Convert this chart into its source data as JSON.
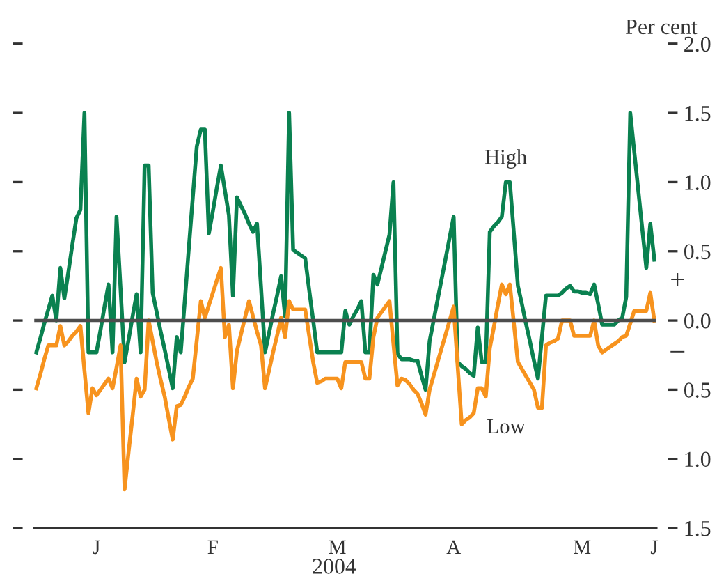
{
  "chart_data": {
    "type": "line",
    "xlabel": "2004",
    "ylabel": "Per cent",
    "ylim": [
      -1.5,
      2.0
    ],
    "yticks": [
      {
        "value": 2,
        "label": "2.0"
      },
      {
        "value": 1.5,
        "label": "1.5"
      },
      {
        "value": 1,
        "label": "1.0"
      },
      {
        "value": 0.5,
        "label": "0.5"
      },
      {
        "value": 0,
        "label": "0.0"
      },
      {
        "value": -0.5,
        "label": "0.5"
      },
      {
        "value": -1,
        "label": "1.0"
      },
      {
        "value": -1.5,
        "label": "1.5"
      }
    ],
    "ref_lines": [
      {
        "axis": "y",
        "value": 0,
        "color": "#4d4d4d"
      }
    ],
    "annotations": [
      "+",
      "–"
    ],
    "categories": [
      null,
      null,
      null,
      null,
      null,
      null,
      null,
      null,
      null,
      null,
      null,
      null,
      null,
      null,
      null,
      "J",
      null,
      null,
      null,
      null,
      null,
      null,
      null,
      null,
      null,
      null,
      null,
      null,
      null,
      null,
      null,
      null,
      null,
      null,
      null,
      null,
      null,
      null,
      null,
      null,
      null,
      null,
      null,
      null,
      "F",
      null,
      null,
      null,
      null,
      null,
      null,
      null,
      null,
      null,
      null,
      null,
      null,
      null,
      null,
      null,
      null,
      null,
      null,
      null,
      null,
      null,
      null,
      null,
      null,
      null,
      null,
      null,
      null,
      null,
      null,
      "M",
      null,
      null,
      null,
      null,
      null,
      null,
      null,
      null,
      null,
      null,
      null,
      null,
      null,
      null,
      null,
      null,
      null,
      null,
      null,
      null,
      null,
      null,
      null,
      null,
      null,
      null,
      null,
      null,
      "A",
      null,
      null,
      null,
      null,
      null,
      null,
      null,
      null,
      null,
      null,
      null,
      null,
      null,
      null,
      null,
      null,
      null,
      null,
      null,
      null,
      null,
      null,
      null,
      null,
      null,
      null,
      null,
      null,
      null,
      null,
      null,
      "M",
      null,
      null,
      null,
      null,
      null,
      null,
      null,
      null,
      null,
      null,
      null,
      null,
      null,
      null,
      null,
      null,
      null,
      "J"
    ],
    "series": [
      {
        "name": "High",
        "color": "#0a8150",
        "values": [
          -0.23,
          -0.13,
          -0.02,
          0.08,
          0.18,
          0.0,
          0.38,
          0.16,
          0.35,
          0.55,
          0.74,
          0.8,
          1.5,
          -0.23,
          -0.23,
          -0.23,
          -0.07,
          0.1,
          0.26,
          -0.23,
          0.75,
          0.23,
          -0.3,
          -0.14,
          0.03,
          0.19,
          -0.23,
          1.12,
          1.12,
          0.2,
          0.06,
          -0.08,
          -0.21,
          -0.35,
          -0.49,
          -0.12,
          -0.23,
          0.14,
          0.52,
          0.89,
          1.26,
          1.38,
          1.38,
          0.63,
          0.79,
          0.96,
          1.12,
          0.94,
          0.76,
          0.18,
          0.89,
          0.83,
          0.77,
          0.7,
          0.64,
          0.7,
          0.24,
          -0.23,
          -0.09,
          0.05,
          0.18,
          0.32,
          0.03,
          1.5,
          0.51,
          0.49,
          0.47,
          0.45,
          0.22,
          0.0,
          -0.23,
          -0.23,
          -0.23,
          -0.23,
          -0.23,
          -0.23,
          -0.23,
          0.07,
          -0.03,
          0.03,
          0.08,
          0.14,
          -0.23,
          -0.23,
          0.33,
          0.26,
          0.38,
          0.5,
          0.62,
          1.0,
          -0.24,
          -0.28,
          -0.28,
          -0.28,
          -0.29,
          -0.29,
          -0.4,
          -0.5,
          -0.15,
          0.0,
          0.15,
          0.3,
          0.45,
          0.6,
          0.75,
          -0.3,
          -0.33,
          -0.35,
          -0.38,
          -0.4,
          -0.05,
          -0.3,
          -0.3,
          0.64,
          0.68,
          0.71,
          0.75,
          1.0,
          1.0,
          0.63,
          0.25,
          0.12,
          -0.02,
          -0.15,
          -0.29,
          -0.42,
          -0.12,
          0.18,
          0.18,
          0.18,
          0.18,
          0.2,
          0.23,
          0.25,
          0.21,
          0.21,
          0.2,
          0.2,
          0.19,
          0.26,
          0.12,
          -0.03,
          -0.03,
          -0.03,
          -0.03,
          0.0,
          0.02,
          0.17,
          1.5,
          1.22,
          0.94,
          0.66,
          0.38,
          0.7,
          0.44
        ]
      },
      {
        "name": "Low",
        "color": "#f7931e",
        "values": [
          -0.49,
          -0.39,
          -0.28,
          -0.18,
          -0.18,
          -0.18,
          -0.04,
          -0.18,
          -0.15,
          -0.11,
          -0.08,
          -0.04,
          -0.36,
          -0.67,
          -0.49,
          -0.54,
          -0.5,
          -0.46,
          -0.42,
          -0.49,
          -0.34,
          -0.18,
          -1.22,
          -0.95,
          -0.69,
          -0.42,
          -0.55,
          -0.5,
          0.0,
          -0.15,
          -0.3,
          -0.43,
          -0.55,
          -0.71,
          -0.86,
          -0.62,
          -0.61,
          -0.55,
          -0.48,
          -0.42,
          -0.14,
          0.14,
          0.02,
          0.11,
          0.2,
          0.29,
          0.38,
          -0.12,
          -0.03,
          -0.49,
          -0.22,
          -0.1,
          0.02,
          0.14,
          0.03,
          -0.08,
          -0.18,
          -0.49,
          -0.36,
          -0.23,
          -0.11,
          0.02,
          -0.12,
          0.14,
          0.08,
          0.08,
          0.08,
          0.08,
          -0.11,
          -0.3,
          -0.45,
          -0.44,
          -0.42,
          -0.42,
          -0.42,
          -0.42,
          -0.49,
          -0.3,
          -0.3,
          -0.3,
          -0.3,
          -0.3,
          -0.42,
          -0.42,
          -0.12,
          0.02,
          0.06,
          0.1,
          0.14,
          -0.17,
          -0.47,
          -0.42,
          -0.43,
          -0.46,
          -0.5,
          -0.53,
          -0.6,
          -0.68,
          -0.5,
          -0.4,
          -0.3,
          -0.2,
          -0.1,
          0.0,
          0.1,
          -0.33,
          -0.75,
          -0.72,
          -0.7,
          -0.67,
          -0.49,
          -0.49,
          -0.55,
          -0.2,
          -0.05,
          0.11,
          0.26,
          0.19,
          0.26,
          -0.02,
          -0.3,
          -0.35,
          -0.4,
          -0.45,
          -0.5,
          -0.63,
          -0.63,
          -0.18,
          -0.16,
          -0.15,
          -0.13,
          0.0,
          0.0,
          0.0,
          -0.11,
          -0.11,
          -0.11,
          -0.11,
          -0.11,
          0.0,
          -0.18,
          -0.23,
          -0.21,
          -0.19,
          -0.17,
          -0.15,
          -0.12,
          -0.11,
          -0.02,
          0.07,
          0.07,
          0.07,
          0.07,
          0.2,
          0.0
        ]
      }
    ]
  }
}
